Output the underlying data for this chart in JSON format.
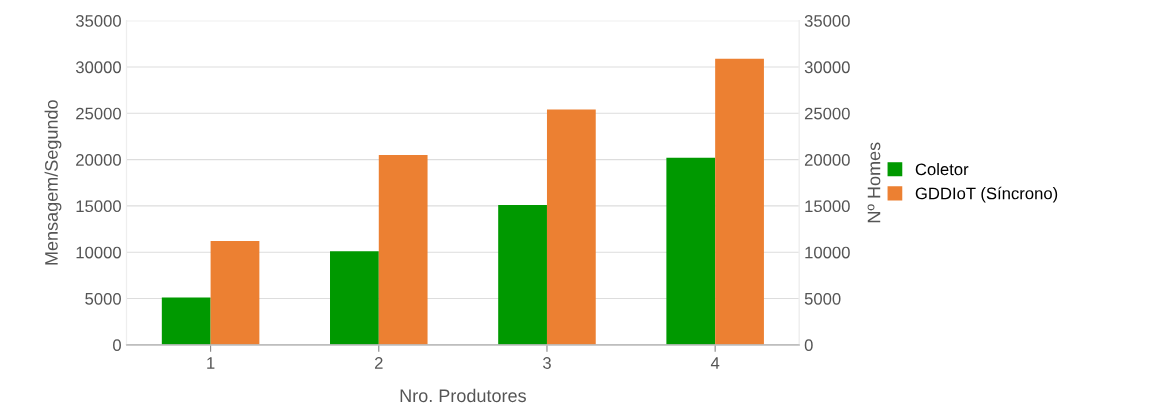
{
  "chart_data": {
    "type": "bar",
    "xlabel": "Nro. Produtores",
    "ylabel": "Mensagem/Segundo",
    "y2label": "Nº Homes",
    "categories": [
      "1",
      "2",
      "3",
      "4"
    ],
    "series": [
      {
        "name": "Coletor",
        "color": "#009900",
        "values": [
          5100,
          10100,
          15100,
          20200
        ]
      },
      {
        "name": "GDDIoT (Síncrono)",
        "color": "#ec8032",
        "values": [
          11200,
          20500,
          25400,
          30900
        ]
      }
    ],
    "ylim": [
      0,
      35000
    ],
    "yticks": [
      0,
      5000,
      10000,
      15000,
      20000,
      25000,
      30000,
      35000
    ],
    "y2lim": [
      0,
      35000
    ],
    "y2ticks": [
      0,
      5000,
      10000,
      15000,
      20000,
      25000,
      30000,
      35000
    ],
    "grid": "y",
    "legend": "right"
  }
}
